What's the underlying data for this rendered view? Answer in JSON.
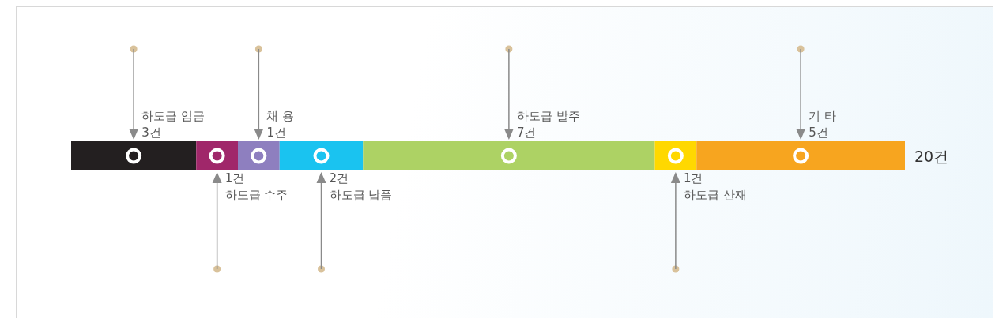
{
  "chart_data": {
    "type": "bar",
    "stacked": true,
    "orientation": "horizontal",
    "categories": [
      null
    ],
    "legend": false,
    "totals": [
      "20건"
    ],
    "series": [
      {
        "name": "하도급 임금",
        "color": "#231f20",
        "values": [
          3
        ],
        "value_labels": [
          "3건"
        ]
      },
      {
        "name": "하도급 수주",
        "color": "#a0276a",
        "values": [
          1
        ],
        "value_labels": [
          "1건"
        ]
      },
      {
        "name": "채 용",
        "color": "#8e7fbf",
        "values": [
          1
        ],
        "value_labels": [
          "1건"
        ]
      },
      {
        "name": "하도급 납품",
        "color": "#1ac3f0",
        "values": [
          2
        ],
        "value_labels": [
          "2건"
        ]
      },
      {
        "name": "하도급 발주",
        "color": "#add264",
        "values": [
          7
        ],
        "value_labels": [
          "7건"
        ]
      },
      {
        "name": "하도급 산재",
        "color": "#ffd800",
        "values": [
          1
        ],
        "value_labels": [
          "1건"
        ]
      },
      {
        "name": "기 타",
        "color": "#f7a51f",
        "values": [
          5
        ],
        "value_labels": [
          "5건"
        ]
      }
    ]
  }
}
